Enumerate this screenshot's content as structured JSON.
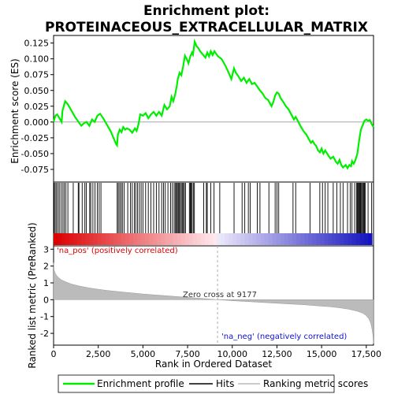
{
  "title_line1": "Enrichment plot:",
  "title_line2": "PROTEINACEOUS_EXTRACELLULAR_MATRIX",
  "colors": {
    "enrichment_line": "#00ee00",
    "pos_color": "#dd0000",
    "neg_color": "#1010cc",
    "metric_fill": "#bbbbbb",
    "zero_cross": "#aaaaaa"
  },
  "chart_data": {
    "type": "line",
    "x_max": 17905,
    "top": {
      "ylabel": "Enrichment score (ES)",
      "ylim": [
        -0.095,
        0.137
      ],
      "yticks": [
        {
          "v": -0.075,
          "label": "-0.075"
        },
        {
          "v": -0.05,
          "label": "-0.050"
        },
        {
          "v": -0.025,
          "label": "-0.025"
        },
        {
          "v": 0.0,
          "label": "0.000"
        },
        {
          "v": 0.025,
          "label": "0.025"
        },
        {
          "v": 0.05,
          "label": "0.050"
        },
        {
          "v": 0.075,
          "label": "0.075"
        },
        {
          "v": 0.1,
          "label": "0.100"
        },
        {
          "v": 0.125,
          "label": "0.125"
        }
      ],
      "series_name": "Enrichment profile",
      "es_points": [
        [
          0,
          0.0
        ],
        [
          100,
          0.01
        ],
        [
          200,
          0.012
        ],
        [
          350,
          0.005
        ],
        [
          450,
          0.0
        ],
        [
          500,
          0.018
        ],
        [
          650,
          0.033
        ],
        [
          800,
          0.028
        ],
        [
          1000,
          0.018
        ],
        [
          1200,
          0.008
        ],
        [
          1400,
          0.0
        ],
        [
          1550,
          -0.006
        ],
        [
          1700,
          -0.002
        ],
        [
          1850,
          0.0
        ],
        [
          2000,
          -0.006
        ],
        [
          2150,
          0.004
        ],
        [
          2300,
          0.0
        ],
        [
          2450,
          0.01
        ],
        [
          2600,
          0.013
        ],
        [
          2800,
          0.005
        ],
        [
          3000,
          -0.005
        ],
        [
          3200,
          -0.015
        ],
        [
          3350,
          -0.025
        ],
        [
          3500,
          -0.035
        ],
        [
          3550,
          -0.037
        ],
        [
          3600,
          -0.02
        ],
        [
          3700,
          -0.012
        ],
        [
          3800,
          -0.016
        ],
        [
          3900,
          -0.008
        ],
        [
          4000,
          -0.012
        ],
        [
          4100,
          -0.01
        ],
        [
          4250,
          -0.012
        ],
        [
          4400,
          -0.017
        ],
        [
          4550,
          -0.01
        ],
        [
          4650,
          -0.014
        ],
        [
          4750,
          -0.004
        ],
        [
          4850,
          0.012
        ],
        [
          5000,
          0.01
        ],
        [
          5150,
          0.014
        ],
        [
          5300,
          0.006
        ],
        [
          5450,
          0.012
        ],
        [
          5600,
          0.016
        ],
        [
          5750,
          0.01
        ],
        [
          5900,
          0.016
        ],
        [
          6050,
          0.01
        ],
        [
          6200,
          0.027
        ],
        [
          6350,
          0.02
        ],
        [
          6500,
          0.025
        ],
        [
          6600,
          0.04
        ],
        [
          6700,
          0.033
        ],
        [
          6800,
          0.043
        ],
        [
          6900,
          0.058
        ],
        [
          6950,
          0.068
        ],
        [
          7050,
          0.078
        ],
        [
          7150,
          0.074
        ],
        [
          7250,
          0.088
        ],
        [
          7350,
          0.105
        ],
        [
          7450,
          0.1
        ],
        [
          7550,
          0.093
        ],
        [
          7650,
          0.104
        ],
        [
          7750,
          0.11
        ],
        [
          7800,
          0.107
        ],
        [
          7900,
          0.127
        ],
        [
          8000,
          0.12
        ],
        [
          8100,
          0.117
        ],
        [
          8200,
          0.112
        ],
        [
          8350,
          0.107
        ],
        [
          8500,
          0.102
        ],
        [
          8600,
          0.11
        ],
        [
          8700,
          0.104
        ],
        [
          8800,
          0.112
        ],
        [
          8900,
          0.106
        ],
        [
          9000,
          0.112
        ],
        [
          9100,
          0.108
        ],
        [
          9200,
          0.104
        ],
        [
          9400,
          0.1
        ],
        [
          9600,
          0.09
        ],
        [
          9800,
          0.078
        ],
        [
          9950,
          0.068
        ],
        [
          10100,
          0.085
        ],
        [
          10200,
          0.078
        ],
        [
          10350,
          0.072
        ],
        [
          10500,
          0.065
        ],
        [
          10650,
          0.07
        ],
        [
          10800,
          0.062
        ],
        [
          10950,
          0.068
        ],
        [
          11100,
          0.06
        ],
        [
          11250,
          0.062
        ],
        [
          11400,
          0.056
        ],
        [
          11550,
          0.05
        ],
        [
          11700,
          0.045
        ],
        [
          11850,
          0.038
        ],
        [
          12000,
          0.035
        ],
        [
          12100,
          0.03
        ],
        [
          12200,
          0.025
        ],
        [
          12300,
          0.032
        ],
        [
          12400,
          0.042
        ],
        [
          12500,
          0.047
        ],
        [
          12600,
          0.045
        ],
        [
          12700,
          0.038
        ],
        [
          12850,
          0.032
        ],
        [
          13000,
          0.025
        ],
        [
          13150,
          0.02
        ],
        [
          13300,
          0.012
        ],
        [
          13450,
          0.004
        ],
        [
          13550,
          0.008
        ],
        [
          13700,
          0.0
        ],
        [
          13850,
          -0.008
        ],
        [
          14000,
          -0.015
        ],
        [
          14150,
          -0.02
        ],
        [
          14300,
          -0.028
        ],
        [
          14400,
          -0.033
        ],
        [
          14500,
          -0.03
        ],
        [
          14600,
          -0.035
        ],
        [
          14700,
          -0.038
        ],
        [
          14800,
          -0.045
        ],
        [
          14900,
          -0.048
        ],
        [
          15000,
          -0.042
        ],
        [
          15100,
          -0.05
        ],
        [
          15200,
          -0.045
        ],
        [
          15350,
          -0.052
        ],
        [
          15500,
          -0.058
        ],
        [
          15650,
          -0.055
        ],
        [
          15800,
          -0.063
        ],
        [
          15900,
          -0.066
        ],
        [
          16000,
          -0.06
        ],
        [
          16100,
          -0.068
        ],
        [
          16200,
          -0.072
        ],
        [
          16350,
          -0.068
        ],
        [
          16450,
          -0.073
        ],
        [
          16550,
          -0.068
        ],
        [
          16650,
          -0.07
        ],
        [
          16700,
          -0.062
        ],
        [
          16800,
          -0.066
        ],
        [
          16900,
          -0.06
        ],
        [
          17000,
          -0.05
        ],
        [
          17050,
          -0.04
        ],
        [
          17100,
          -0.03
        ],
        [
          17150,
          -0.02
        ],
        [
          17200,
          -0.012
        ],
        [
          17300,
          -0.005
        ],
        [
          17400,
          0.002
        ],
        [
          17500,
          0.004
        ],
        [
          17600,
          0.002
        ],
        [
          17700,
          0.003
        ],
        [
          17800,
          -0.003
        ],
        [
          17905,
          -0.008
        ]
      ],
      "hits": [
        30,
        90,
        160,
        240,
        320,
        420,
        520,
        600,
        690,
        800,
        1100,
        1380,
        1420,
        1600,
        1750,
        1830,
        2020,
        2080,
        2200,
        2320,
        2450,
        2550,
        2650,
        3560,
        3620,
        3700,
        3780,
        3850,
        3950,
        4150,
        4300,
        4400,
        4520,
        4600,
        4700,
        4800,
        4900,
        5000,
        5150,
        5300,
        5450,
        5600,
        5750,
        5900,
        6050,
        6150,
        6250,
        6400,
        6550,
        6650,
        6750,
        6820,
        6880,
        6920,
        6980,
        7020,
        7080,
        7150,
        7200,
        7260,
        7320,
        7380,
        7600,
        7650,
        7700,
        7750,
        7820,
        7880,
        8400,
        8550,
        8600,
        8800,
        8980,
        9300,
        10100,
        10550,
        10700,
        10900,
        11000,
        11400,
        11550,
        12050,
        12400,
        12500,
        12600,
        13400,
        13550,
        14350,
        14900,
        15050,
        15200,
        15350,
        15650,
        15850,
        16050,
        16200,
        16450,
        16600,
        16700,
        16850,
        16950,
        17000,
        17050,
        17080,
        17120,
        17160,
        17200,
        17250,
        17300,
        17350,
        17400,
        17450,
        17600,
        17800
      ]
    },
    "bottom": {
      "ylabel": "Ranked list metric (PreRanked)",
      "xlabel": "Rank in Ordered Dataset",
      "ylim": [
        -2.7,
        3.2
      ],
      "yticks": [
        {
          "v": -2,
          "label": "-2"
        },
        {
          "v": -1,
          "label": "-1"
        },
        {
          "v": 0,
          "label": "0"
        },
        {
          "v": 1,
          "label": "1"
        },
        {
          "v": 2,
          "label": "2"
        },
        {
          "v": 3,
          "label": "3"
        }
      ],
      "xticks": [
        {
          "v": 0,
          "label": "0"
        },
        {
          "v": 2500,
          "label": "2,500"
        },
        {
          "v": 5000,
          "label": "5,000"
        },
        {
          "v": 7500,
          "label": "7,500"
        },
        {
          "v": 10000,
          "label": "10,000"
        },
        {
          "v": 12500,
          "label": "12,500"
        },
        {
          "v": 15000,
          "label": "15,000"
        },
        {
          "v": 17500,
          "label": "17,500"
        }
      ],
      "metric_points": [
        [
          0,
          2.2
        ],
        [
          30,
          1.75
        ],
        [
          100,
          1.55
        ],
        [
          200,
          1.4
        ],
        [
          400,
          1.2
        ],
        [
          700,
          1.05
        ],
        [
          1000,
          0.93
        ],
        [
          1500,
          0.8
        ],
        [
          2000,
          0.7
        ],
        [
          2500,
          0.62
        ],
        [
          3000,
          0.55
        ],
        [
          4000,
          0.44
        ],
        [
          5000,
          0.34
        ],
        [
          6000,
          0.26
        ],
        [
          7000,
          0.18
        ],
        [
          8000,
          0.1
        ],
        [
          9177,
          0.0
        ],
        [
          10000,
          -0.06
        ],
        [
          11000,
          -0.12
        ],
        [
          12000,
          -0.18
        ],
        [
          13000,
          -0.24
        ],
        [
          14000,
          -0.3
        ],
        [
          15000,
          -0.38
        ],
        [
          15500,
          -0.42
        ],
        [
          16000,
          -0.48
        ],
        [
          16500,
          -0.56
        ],
        [
          17000,
          -0.68
        ],
        [
          17300,
          -0.8
        ],
        [
          17500,
          -0.95
        ],
        [
          17650,
          -1.15
        ],
        [
          17750,
          -1.4
        ],
        [
          17830,
          -1.8
        ],
        [
          17870,
          -2.1
        ],
        [
          17905,
          -2.6
        ]
      ],
      "zero_cross_rank": 9177
    },
    "annotations": {
      "pos_label": "'na_pos' (positively correlated)",
      "neg_label": "'na_neg' (negatively correlated)",
      "zero_cross_label": "Zero cross at 9177"
    }
  },
  "legend": {
    "items": [
      {
        "label": "Enrichment profile"
      },
      {
        "label": "Hits"
      },
      {
        "label": "Ranking metric scores"
      }
    ]
  }
}
